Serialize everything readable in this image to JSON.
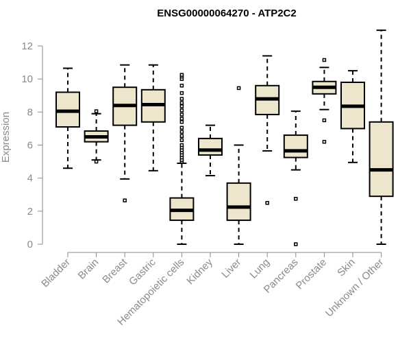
{
  "chart_data": {
    "type": "box",
    "title": "ENSG00000064270 - ATP2C2",
    "xlabel": "",
    "ylabel": "Expression",
    "ylim": [
      0,
      12
    ],
    "yticks": [
      0,
      2,
      4,
      6,
      8,
      10,
      12
    ],
    "box_fill": "#ede6cc",
    "categories": [
      "Bladder",
      "Brain",
      "Breast",
      "Gastric",
      "Hematopoietic cells",
      "Kidney",
      "Liver",
      "Lung",
      "Pancreas",
      "Prostate",
      "Skin",
      "Unknown / Other"
    ],
    "boxes": [
      {
        "min": 4.6,
        "q1": 7.1,
        "median": 8.05,
        "q3": 9.2,
        "max": 10.65,
        "outliers": []
      },
      {
        "min": 5.1,
        "q1": 6.2,
        "median": 6.5,
        "q3": 6.85,
        "max": 7.9,
        "outliers": [
          5.0,
          8.05
        ]
      },
      {
        "min": 3.95,
        "q1": 7.2,
        "median": 8.4,
        "q3": 9.5,
        "max": 10.85,
        "outliers": [
          2.65
        ]
      },
      {
        "min": 4.45,
        "q1": 7.4,
        "median": 8.45,
        "q3": 9.35,
        "max": 10.85,
        "outliers": []
      },
      {
        "min": 0.0,
        "q1": 1.45,
        "median": 2.05,
        "q3": 2.8,
        "max": 4.9,
        "outliers": [
          5.0,
          5.1,
          5.25,
          5.4,
          5.55,
          5.7,
          5.85,
          6.0,
          6.3,
          6.55,
          6.8,
          7.05,
          7.4,
          7.6,
          7.85,
          8.1,
          8.35,
          8.55,
          8.8,
          9.15,
          9.6,
          10.0,
          10.15,
          10.25
        ]
      },
      {
        "min": 4.15,
        "q1": 5.4,
        "median": 5.7,
        "q3": 6.4,
        "max": 7.2,
        "outliers": []
      },
      {
        "min": 0.0,
        "q1": 1.45,
        "median": 2.25,
        "q3": 3.7,
        "max": 6.0,
        "outliers": [
          9.45
        ]
      },
      {
        "min": 5.65,
        "q1": 7.85,
        "median": 8.8,
        "q3": 9.6,
        "max": 11.4,
        "outliers": [
          2.5
        ]
      },
      {
        "min": 4.5,
        "q1": 5.25,
        "median": 5.65,
        "q3": 6.6,
        "max": 8.05,
        "outliers": [
          2.75,
          0.0
        ]
      },
      {
        "min": 8.15,
        "q1": 9.1,
        "median": 9.5,
        "q3": 9.85,
        "max": 10.7,
        "outliers": [
          11.15,
          7.5,
          6.2
        ]
      },
      {
        "min": 4.95,
        "q1": 7.0,
        "median": 8.35,
        "q3": 9.8,
        "max": 10.5,
        "outliers": []
      },
      {
        "min": 0.0,
        "q1": 2.9,
        "median": 4.5,
        "q3": 7.4,
        "max": 12.95,
        "outliers": []
      }
    ]
  }
}
